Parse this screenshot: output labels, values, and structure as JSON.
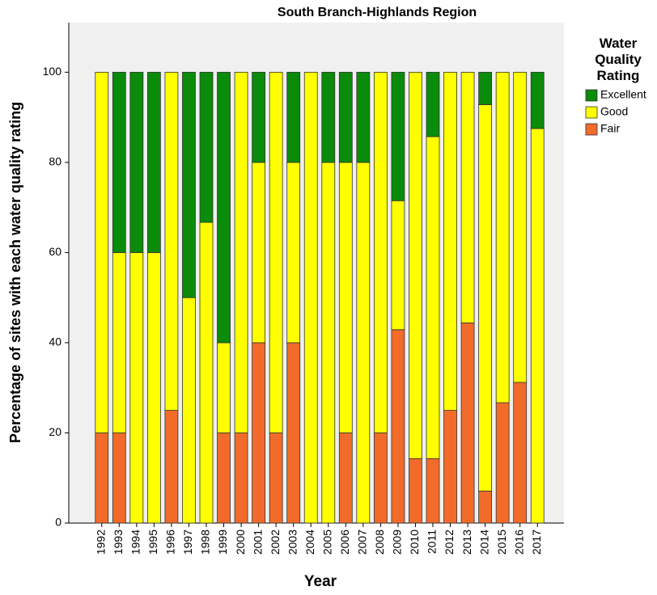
{
  "chart_data": {
    "type": "stacked_bar",
    "title": "South Branch-Highlands Region",
    "x_label": "Year",
    "y_label": "Percentage of sites with each water quality rating",
    "legend_title": "Water Quality Rating",
    "categories": [
      "1992",
      "1993",
      "1994",
      "1995",
      "1996",
      "1997",
      "1998",
      "1999",
      "2000",
      "2001",
      "2002",
      "2003",
      "2004",
      "2005",
      "2006",
      "2007",
      "2008",
      "2009",
      "2010",
      "2011",
      "2012",
      "2013",
      "2014",
      "2015",
      "2016",
      "2017"
    ],
    "series": [
      {
        "name": "Fair",
        "color": "#f26b2a",
        "values": [
          20,
          20,
          0,
          0,
          25,
          0,
          0,
          20,
          20,
          40,
          20,
          40,
          0,
          0,
          20,
          0,
          20,
          42.9,
          14.3,
          14.3,
          25,
          44.4,
          7.1,
          26.7,
          31.2,
          0
        ]
      },
      {
        "name": "Good",
        "color": "#ffff00",
        "values": [
          80,
          40,
          60,
          60,
          75,
          50,
          66.7,
          20,
          80,
          40,
          80,
          40,
          100,
          80,
          60,
          80,
          80,
          28.6,
          85.7,
          71.4,
          75,
          55.6,
          85.7,
          73.3,
          68.8,
          87.5
        ]
      },
      {
        "name": "Excellent",
        "color": "#0a8c0a",
        "values": [
          0,
          40,
          40,
          40,
          0,
          50,
          33.3,
          60,
          0,
          20,
          0,
          20,
          0,
          20,
          20,
          20,
          0,
          28.5,
          0,
          14.3,
          0,
          0,
          7.2,
          0,
          0,
          12.5
        ]
      }
    ],
    "ylim": [
      0,
      111
    ],
    "yticks": [
      0,
      20,
      40,
      60,
      80,
      100
    ]
  }
}
